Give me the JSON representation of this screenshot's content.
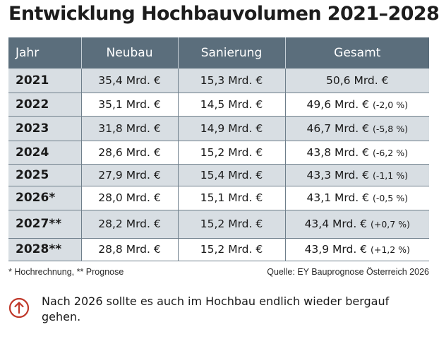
{
  "title": "Entwicklung Hochbauvolumen 2021–2028",
  "table": {
    "headers": [
      "Jahr",
      "Neubau",
      "Sanierung",
      "Gesamt"
    ],
    "rows": [
      {
        "year": "2021",
        "neubau": "35,4 Mrd. €",
        "sanierung": "15,3 Mrd. €",
        "gesamt": "50,6 Mrd. €",
        "delta": ""
      },
      {
        "year": "2022",
        "neubau": "35,1 Mrd. €",
        "sanierung": "14,5 Mrd. €",
        "gesamt": "49,6 Mrd. €",
        "delta": "(-2,0 %)"
      },
      {
        "year": "2023",
        "neubau": "31,8 Mrd. €",
        "sanierung": "14,9 Mrd. €",
        "gesamt": "46,7 Mrd. €",
        "delta": "(-5,8 %)"
      },
      {
        "year": "2024",
        "neubau": "28,6 Mrd. €",
        "sanierung": "15,2 Mrd. €",
        "gesamt": "43,8 Mrd. €",
        "delta": "(-6,2 %)"
      },
      {
        "year": "2025",
        "neubau": "27,9 Mrd. €",
        "sanierung": "15,4 Mrd. €",
        "gesamt": "43,3 Mrd. €",
        "delta": "(-1,1 %)"
      },
      {
        "year": "2026*",
        "neubau": "28,0 Mrd. €",
        "sanierung": "15,1 Mrd. €",
        "gesamt": "43,1 Mrd. €",
        "delta": "(-0,5 %)"
      },
      {
        "year": "2027**",
        "neubau": "28,2 Mrd. €",
        "sanierung": "15,2 Mrd. €",
        "gesamt": "43,4 Mrd. €",
        "delta": "(+0,7 %)"
      },
      {
        "year": "2028**",
        "neubau": "28,8 Mrd. €",
        "sanierung": "15,2 Mrd. €",
        "gesamt": "43,9 Mrd. €",
        "delta": "(+1,2 %)"
      }
    ]
  },
  "footnote": "* Hochrechnung, ** Prognose",
  "source": "Quelle: EY Bauprognose Österreich 2026",
  "note": {
    "icon": "arrow-up-circle-icon",
    "icon_color": "#c0392b",
    "text": "Nach 2026 sollte es auch im Hochbau endlich wieder bergauf gehen."
  },
  "colors": {
    "header_bg": "#5b6e7c",
    "row_alt_bg": "#d8dee3"
  }
}
